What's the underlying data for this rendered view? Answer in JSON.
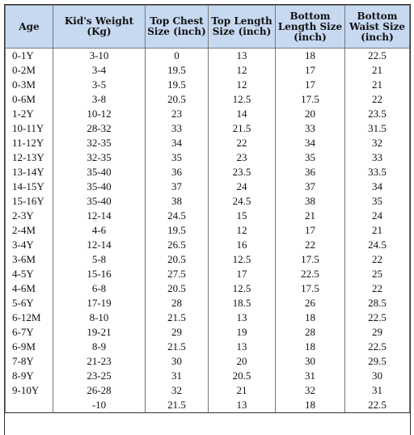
{
  "table": {
    "header": [
      "Age",
      "Kid's Weight (Kg)",
      "Top Chest Size (inch)",
      "Top Length Size (inch)",
      "Bottom Length Size (inch)",
      "Bottom Waist Size (inch)"
    ],
    "rows": [
      [
        "0-1Y",
        "3-10",
        0,
        13,
        18,
        22.5
      ],
      [
        "0-2M",
        "3-4",
        19.5,
        12,
        17,
        21
      ],
      [
        "0-3M",
        "3-5",
        19.5,
        12,
        17,
        21
      ],
      [
        "0-6M",
        "3-8",
        20.5,
        12.5,
        17.5,
        22
      ],
      [
        "1-2Y",
        "10-12",
        23,
        14,
        20,
        23.5
      ],
      [
        "10-11Y",
        "28-32",
        33,
        21.5,
        33,
        31.5
      ],
      [
        "11-12Y",
        "32-35",
        34,
        22,
        34,
        32
      ],
      [
        "12-13Y",
        "32-35",
        35,
        23,
        35,
        33
      ],
      [
        "13-14Y",
        "35-40",
        36,
        23.5,
        36,
        33.5
      ],
      [
        "14-15Y",
        "35-40",
        37,
        24,
        37,
        34
      ],
      [
        "15-16Y",
        "35-40",
        38,
        24.5,
        38,
        35
      ],
      [
        "2-3Y",
        "12-14",
        24.5,
        15,
        21,
        24
      ],
      [
        "2-4M",
        "4-6",
        19.5,
        12,
        17,
        21
      ],
      [
        "3-4Y",
        "12-14",
        26.5,
        16,
        22,
        24.5
      ],
      [
        "3-6M",
        "5-8",
        20.5,
        12.5,
        17.5,
        22
      ],
      [
        "4-5Y",
        "15-16",
        27.5,
        17,
        22.5,
        25
      ],
      [
        "4-6M",
        "6-8",
        20.5,
        12.5,
        17.5,
        22
      ],
      [
        "5-6Y",
        "17-19",
        28,
        18.5,
        26,
        28.5
      ],
      [
        "6-12M",
        "8-10",
        21.5,
        13,
        18,
        22.5
      ],
      [
        "6-7Y",
        "19-21",
        29,
        19,
        28,
        29
      ],
      [
        "6-9M",
        "8-9",
        21.5,
        13,
        18,
        22.5
      ],
      [
        "7-8Y",
        "21-23",
        30,
        20,
        30,
        29.5
      ],
      [
        "8-9Y",
        "23-25",
        31,
        20.5,
        31,
        30
      ],
      [
        "9-10Y",
        "26-28",
        32,
        21,
        32,
        31
      ],
      [
        null,
        "-10",
        21.5,
        13,
        18,
        22.5
      ]
    ]
  }
}
